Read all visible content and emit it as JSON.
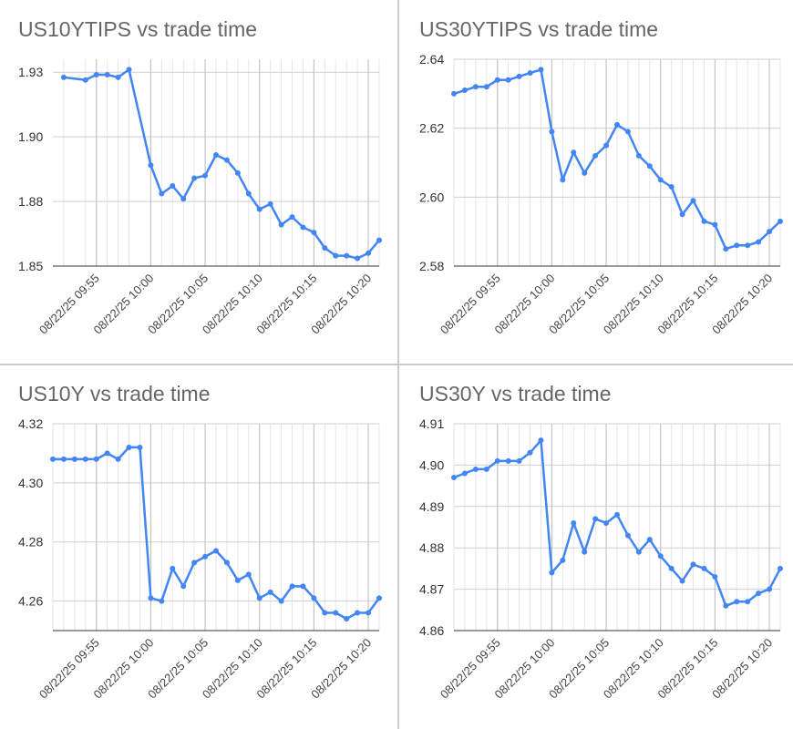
{
  "chart_data": [
    {
      "type": "line",
      "title": "US10YTIPS vs trade time",
      "color": "#4285f4",
      "grid": true,
      "x": [
        "08/22/25 09:52",
        "08/22/25 09:54",
        "08/22/25 09:55",
        "08/22/25 09:56",
        "08/22/25 09:57",
        "08/22/25 09:58",
        "08/22/25 10:00",
        "08/22/25 10:01",
        "08/22/25 10:02",
        "08/22/25 10:03",
        "08/22/25 10:04",
        "08/22/25 10:05",
        "08/22/25 10:06",
        "08/22/25 10:07",
        "08/22/25 10:08",
        "08/22/25 10:09",
        "08/22/25 10:10",
        "08/22/25 10:11",
        "08/22/25 10:12",
        "08/22/25 10:13",
        "08/22/25 10:14",
        "08/22/25 10:15",
        "08/22/25 10:16",
        "08/22/25 10:17",
        "08/22/25 10:18",
        "08/22/25 10:19",
        "08/22/25 10:20",
        "08/22/25 10:21"
      ],
      "values": [
        1.923,
        1.922,
        1.924,
        1.924,
        1.923,
        1.926,
        1.889,
        1.878,
        1.881,
        1.876,
        1.884,
        1.885,
        1.893,
        1.891,
        1.886,
        1.878,
        1.872,
        1.874,
        1.866,
        1.869,
        1.865,
        1.863,
        1.857,
        1.854,
        1.854,
        1.853,
        1.855,
        1.86
      ],
      "xlim": [
        "08/22/25 09:51",
        "08/22/25 10:21"
      ],
      "xticks": [
        "08/22/25 09:55",
        "08/22/25 10:00",
        "08/22/25 10:05",
        "08/22/25 10:10",
        "08/22/25 10:15",
        "08/22/25 10:20"
      ],
      "ylim": [
        1.85,
        1.93
      ],
      "yticks": [
        {
          "value": 1.925,
          "label": "1.93"
        },
        {
          "value": 1.9,
          "label": "1.90"
        },
        {
          "value": 1.875,
          "label": "1.88"
        },
        {
          "value": 1.85,
          "label": "1.85"
        }
      ]
    },
    {
      "type": "line",
      "title": "US30YTIPS vs trade time",
      "color": "#4285f4",
      "grid": true,
      "x": [
        "08/22/25 09:51",
        "08/22/25 09:52",
        "08/22/25 09:53",
        "08/22/25 09:54",
        "08/22/25 09:55",
        "08/22/25 09:56",
        "08/22/25 09:57",
        "08/22/25 09:58",
        "08/22/25 09:59",
        "08/22/25 10:00",
        "08/22/25 10:01",
        "08/22/25 10:02",
        "08/22/25 10:03",
        "08/22/25 10:04",
        "08/22/25 10:05",
        "08/22/25 10:06",
        "08/22/25 10:07",
        "08/22/25 10:08",
        "08/22/25 10:09",
        "08/22/25 10:10",
        "08/22/25 10:11",
        "08/22/25 10:12",
        "08/22/25 10:13",
        "08/22/25 10:14",
        "08/22/25 10:15",
        "08/22/25 10:16",
        "08/22/25 10:17",
        "08/22/25 10:18",
        "08/22/25 10:19",
        "08/22/25 10:20",
        "08/22/25 10:21"
      ],
      "values": [
        2.63,
        2.631,
        2.632,
        2.632,
        2.634,
        2.634,
        2.635,
        2.636,
        2.637,
        2.619,
        2.605,
        2.613,
        2.607,
        2.612,
        2.615,
        2.621,
        2.619,
        2.612,
        2.609,
        2.605,
        2.603,
        2.595,
        2.599,
        2.593,
        2.592,
        2.585,
        2.586,
        2.586,
        2.587,
        2.59,
        2.593
      ],
      "xlim": [
        "08/22/25 09:51",
        "08/22/25 10:21"
      ],
      "xticks": [
        "08/22/25 09:55",
        "08/22/25 10:00",
        "08/22/25 10:05",
        "08/22/25 10:10",
        "08/22/25 10:15",
        "08/22/25 10:20"
      ],
      "ylim": [
        2.58,
        2.64
      ],
      "yticks": [
        2.64,
        2.62,
        {
          "value": 2.6,
          "label": "2.60"
        },
        2.58
      ]
    },
    {
      "type": "line",
      "title": "US10Y vs trade time",
      "color": "#4285f4",
      "grid": true,
      "x": [
        "08/22/25 09:51",
        "08/22/25 09:52",
        "08/22/25 09:53",
        "08/22/25 09:54",
        "08/22/25 09:55",
        "08/22/25 09:56",
        "08/22/25 09:57",
        "08/22/25 09:58",
        "08/22/25 09:59",
        "08/22/25 10:00",
        "08/22/25 10:01",
        "08/22/25 10:02",
        "08/22/25 10:03",
        "08/22/25 10:04",
        "08/22/25 10:05",
        "08/22/25 10:06",
        "08/22/25 10:07",
        "08/22/25 10:08",
        "08/22/25 10:09",
        "08/22/25 10:10",
        "08/22/25 10:11",
        "08/22/25 10:12",
        "08/22/25 10:13",
        "08/22/25 10:14",
        "08/22/25 10:15",
        "08/22/25 10:16",
        "08/22/25 10:17",
        "08/22/25 10:18",
        "08/22/25 10:19",
        "08/22/25 10:20",
        "08/22/25 10:21"
      ],
      "values": [
        4.308,
        4.308,
        4.308,
        4.308,
        4.308,
        4.31,
        4.308,
        4.312,
        4.312,
        4.261,
        4.26,
        4.271,
        4.265,
        4.273,
        4.275,
        4.277,
        4.273,
        4.267,
        4.269,
        4.261,
        4.263,
        4.26,
        4.265,
        4.265,
        4.261,
        4.256,
        4.256,
        4.254,
        4.256,
        4.256,
        4.261
      ],
      "xlim": [
        "08/22/25 09:51",
        "08/22/25 10:21"
      ],
      "xticks": [
        "08/22/25 09:55",
        "08/22/25 10:00",
        "08/22/25 10:05",
        "08/22/25 10:10",
        "08/22/25 10:15",
        "08/22/25 10:20"
      ],
      "ylim": [
        4.25,
        4.32
      ],
      "yticks": [
        4.32,
        {
          "value": 4.3,
          "label": "4.30"
        },
        4.28,
        4.26
      ]
    },
    {
      "type": "line",
      "title": "US30Y vs trade time",
      "color": "#4285f4",
      "grid": true,
      "x": [
        "08/22/25 09:51",
        "08/22/25 09:52",
        "08/22/25 09:53",
        "08/22/25 09:54",
        "08/22/25 09:55",
        "08/22/25 09:56",
        "08/22/25 09:57",
        "08/22/25 09:58",
        "08/22/25 09:59",
        "08/22/25 10:00",
        "08/22/25 10:01",
        "08/22/25 10:02",
        "08/22/25 10:03",
        "08/22/25 10:04",
        "08/22/25 10:05",
        "08/22/25 10:06",
        "08/22/25 10:07",
        "08/22/25 10:08",
        "08/22/25 10:09",
        "08/22/25 10:10",
        "08/22/25 10:11",
        "08/22/25 10:12",
        "08/22/25 10:13",
        "08/22/25 10:14",
        "08/22/25 10:15",
        "08/22/25 10:16",
        "08/22/25 10:17",
        "08/22/25 10:18",
        "08/22/25 10:19",
        "08/22/25 10:20",
        "08/22/25 10:21"
      ],
      "values": [
        4.897,
        4.898,
        4.899,
        4.899,
        4.901,
        4.901,
        4.901,
        4.903,
        4.906,
        4.874,
        4.877,
        4.886,
        4.879,
        4.887,
        4.886,
        4.888,
        4.883,
        4.879,
        4.882,
        4.878,
        4.875,
        4.872,
        4.876,
        4.875,
        4.873,
        4.866,
        4.867,
        4.867,
        4.869,
        4.87,
        4.875
      ],
      "xlim": [
        "08/22/25 09:51",
        "08/22/25 10:21"
      ],
      "xticks": [
        "08/22/25 09:55",
        "08/22/25 10:00",
        "08/22/25 10:05",
        "08/22/25 10:10",
        "08/22/25 10:15",
        "08/22/25 10:20"
      ],
      "ylim": [
        4.86,
        4.91
      ],
      "yticks": [
        4.91,
        {
          "value": 4.9,
          "label": "4.90"
        },
        4.89,
        4.88,
        4.87,
        4.86
      ]
    }
  ]
}
